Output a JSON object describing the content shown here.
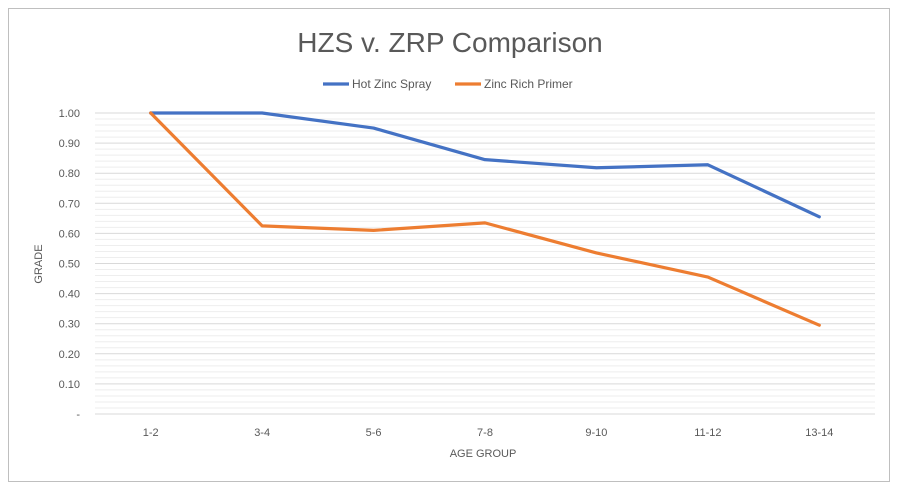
{
  "chart_data": {
    "type": "line",
    "title": "HZS v. ZRP Comparison",
    "xlabel": "AGE GROUP",
    "ylabel": "GRADE",
    "categories": [
      "1-2",
      "3-4",
      "5-6",
      "7-8",
      "9-10",
      "11-12",
      "13-14"
    ],
    "y_tick_labels": [
      "-",
      "0.10",
      "0.20",
      "0.30",
      "0.40",
      "0.50",
      "0.60",
      "0.70",
      "0.80",
      "0.90",
      "1.00"
    ],
    "ylim": [
      0,
      1.0
    ],
    "grid": true,
    "legend_position": "top",
    "series": [
      {
        "name": "Hot Zinc Spray",
        "color": "#4472c4",
        "values": [
          1.0,
          1.0,
          0.95,
          0.845,
          0.818,
          0.828,
          0.655
        ]
      },
      {
        "name": "Zinc Rich Primer",
        "color": "#ed7d31",
        "values": [
          1.0,
          0.625,
          0.61,
          0.635,
          0.535,
          0.455,
          0.295
        ]
      }
    ]
  }
}
